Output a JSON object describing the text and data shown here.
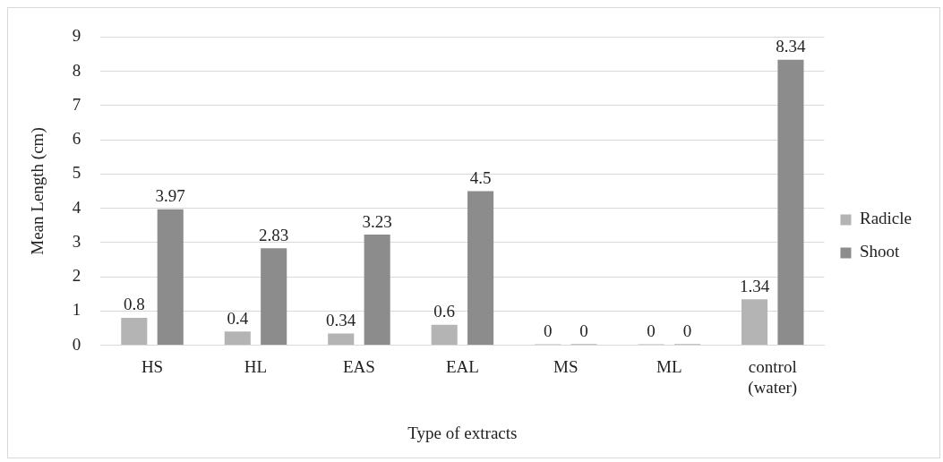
{
  "chart_data": {
    "type": "bar",
    "xlabel": "Type of extracts",
    "ylabel": "Mean Length (cm)",
    "categories": [
      "HS",
      "HL",
      "EAS",
      "EAL",
      "MS",
      "ML",
      "control (water)"
    ],
    "series": [
      {
        "name": "Radicle",
        "color": "#b4b4b4",
        "values": [
          0.8,
          0.4,
          0.34,
          0.6,
          0,
          0,
          1.34
        ]
      },
      {
        "name": "Shoot",
        "color": "#8c8c8c",
        "values": [
          3.97,
          2.83,
          3.23,
          4.5,
          0,
          0,
          8.34
        ]
      }
    ],
    "ylim": [
      0,
      9
    ],
    "yticks": [
      0,
      1,
      2,
      3,
      4,
      5,
      6,
      7,
      8,
      9
    ],
    "grid": "y",
    "legend": "right",
    "data_labels": true
  }
}
